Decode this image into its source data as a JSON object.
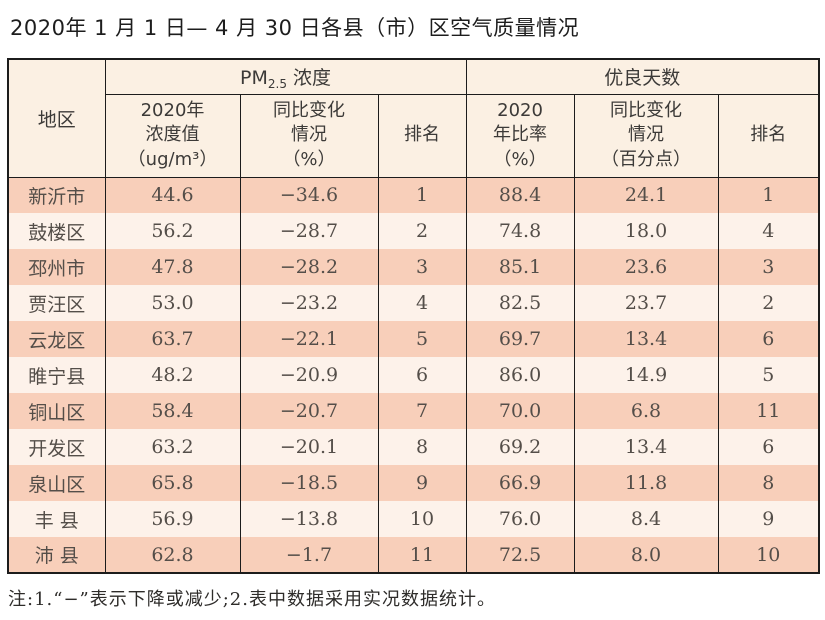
{
  "title": "2020年 1 月 1 日— 4 月 30 日各县（市）区空气质量情况",
  "table": {
    "header": {
      "region": "地区",
      "pm25_group": {
        "prefix": "PM",
        "sub": "2.5",
        "suffix": " 浓度"
      },
      "good_days_group": "优良天数",
      "pm_value_col": "2020年\n浓度值\n（ug/m³）",
      "pm_change_col": "同比变化\n情况\n（%）",
      "pm_rank_col": "排名",
      "good_rate_col": "2020\n年比率\n（%）",
      "good_change_col": "同比变化\n情况\n（百分点）",
      "good_rank_col": "排名"
    },
    "rows": [
      {
        "region": "新沂市",
        "pm_value": "44.6",
        "pm_change": "−34.6",
        "pm_rank": "1",
        "good_rate": "88.4",
        "good_change": "24.1",
        "good_rank": "1"
      },
      {
        "region": "鼓楼区",
        "pm_value": "56.2",
        "pm_change": "−28.7",
        "pm_rank": "2",
        "good_rate": "74.8",
        "good_change": "18.0",
        "good_rank": "4"
      },
      {
        "region": "邳州市",
        "pm_value": "47.8",
        "pm_change": "−28.2",
        "pm_rank": "3",
        "good_rate": "85.1",
        "good_change": "23.6",
        "good_rank": "3"
      },
      {
        "region": "贾汪区",
        "pm_value": "53.0",
        "pm_change": "−23.2",
        "pm_rank": "4",
        "good_rate": "82.5",
        "good_change": "23.7",
        "good_rank": "2"
      },
      {
        "region": "云龙区",
        "pm_value": "63.7",
        "pm_change": "−22.1",
        "pm_rank": "5",
        "good_rate": "69.7",
        "good_change": "13.4",
        "good_rank": "6"
      },
      {
        "region": "睢宁县",
        "pm_value": "48.2",
        "pm_change": "−20.9",
        "pm_rank": "6",
        "good_rate": "86.0",
        "good_change": "14.9",
        "good_rank": "5"
      },
      {
        "region": "铜山区",
        "pm_value": "58.4",
        "pm_change": "−20.7",
        "pm_rank": "7",
        "good_rate": "70.0",
        "good_change": "6.8",
        "good_rank": "11"
      },
      {
        "region": "开发区",
        "pm_value": "63.2",
        "pm_change": "−20.1",
        "pm_rank": "8",
        "good_rate": "69.2",
        "good_change": "13.4",
        "good_rank": "6"
      },
      {
        "region": "泉山区",
        "pm_value": "65.8",
        "pm_change": "−18.5",
        "pm_rank": "9",
        "good_rate": "66.9",
        "good_change": "11.8",
        "good_rank": "8"
      },
      {
        "region": "丰 县",
        "pm_value": "56.9",
        "pm_change": "−13.8",
        "pm_rank": "10",
        "good_rate": "76.0",
        "good_change": "8.4",
        "good_rank": "9"
      },
      {
        "region": "沛 县",
        "pm_value": "62.8",
        "pm_change": "−1.7",
        "pm_rank": "11",
        "good_rate": "72.5",
        "good_change": "8.0",
        "good_rank": "10"
      }
    ]
  },
  "note": "注:1.“−”表示下降或减少;2.表中数据采用实况数据统计。",
  "colors": {
    "header_bg": "#fbf0e3",
    "row_salmon": "#f8cfba",
    "row_light": "#fdf2ea",
    "border": "#1c1c1c",
    "data_text": "#544e49"
  }
}
